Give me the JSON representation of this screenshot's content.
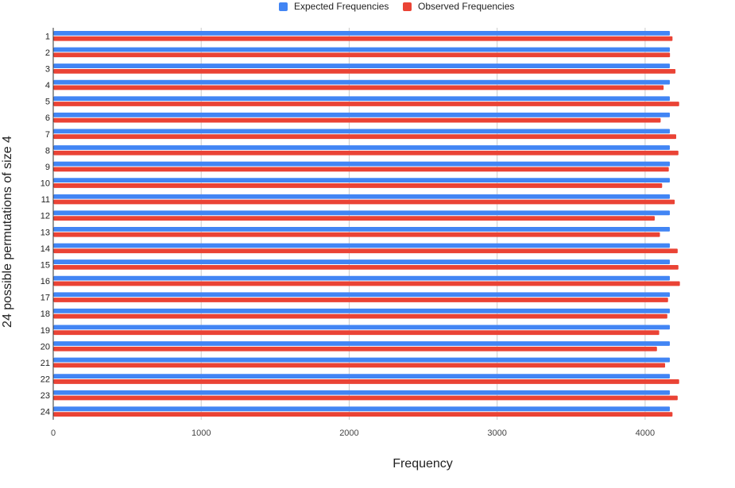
{
  "chart_data": {
    "type": "bar",
    "orientation": "horizontal",
    "xlabel": "Frequency",
    "ylabel": "24 possible permutations of size 4",
    "xlim": [
      0,
      4500
    ],
    "xticks": [
      0,
      1000,
      2000,
      3000,
      4000
    ],
    "grid": true,
    "legend_position": "top",
    "categories": [
      "1",
      "2",
      "3",
      "4",
      "5",
      "6",
      "7",
      "8",
      "9",
      "10",
      "11",
      "12",
      "13",
      "14",
      "15",
      "16",
      "17",
      "18",
      "19",
      "20",
      "21",
      "22",
      "23",
      "24"
    ],
    "series": [
      {
        "name": "Expected Frequencies",
        "color": "#4285f4",
        "values": [
          4167,
          4167,
          4167,
          4167,
          4167,
          4167,
          4167,
          4167,
          4167,
          4167,
          4167,
          4167,
          4167,
          4167,
          4167,
          4167,
          4167,
          4167,
          4167,
          4167,
          4167,
          4167,
          4167,
          4167
        ]
      },
      {
        "name": "Observed Frequencies",
        "color": "#ea4335",
        "values": [
          4185,
          4168,
          4205,
          4125,
          4230,
          4105,
          4210,
          4225,
          4160,
          4115,
          4200,
          4065,
          4100,
          4220,
          4225,
          4235,
          4155,
          4150,
          4095,
          4080,
          4135,
          4230,
          4220,
          4185
        ]
      }
    ]
  }
}
